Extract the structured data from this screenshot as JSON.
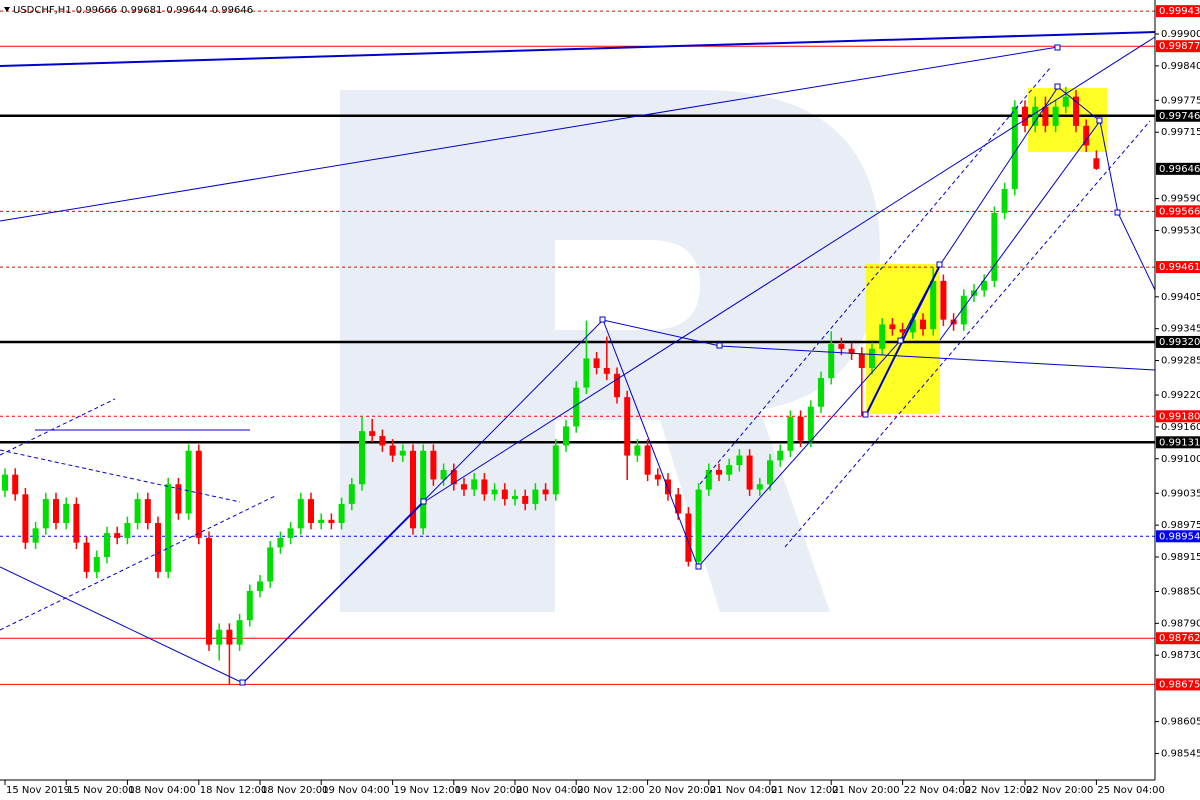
{
  "chart_data": {
    "type": "candlestick",
    "symbol": "USDCHF,H1",
    "up_color": "#00dd00",
    "down_color": "#ff0000",
    "ylim": [
      0.98495,
      0.99964
    ],
    "yticks": [
      {
        "value": 0.999,
        "label": "0.99900"
      },
      {
        "value": 0.9984,
        "label": "0.99840"
      },
      0.99775,
      0.99715,
      {
        "value": 0.9959,
        "label": "0.99590"
      },
      {
        "value": 0.9953,
        "label": "0.99530"
      },
      0.99405,
      0.99345,
      0.99285,
      {
        "value": 0.9922,
        "label": "0.99220"
      },
      {
        "value": 0.9916,
        "label": "0.99160"
      },
      {
        "value": 0.991,
        "label": "0.99100"
      },
      0.99035,
      0.98975,
      0.98915,
      {
        "value": 0.9885,
        "label": "0.98850"
      },
      {
        "value": 0.9879,
        "label": "0.98790"
      },
      {
        "value": 0.9873,
        "label": "0.98730"
      },
      0.98605,
      0.98545
    ],
    "xticks": [
      {
        "value": 0,
        "label": "15 Nov 2019"
      },
      {
        "value": 6,
        "label": "15 Nov 20:00"
      },
      {
        "value": 12,
        "label": "18 Nov 04:00"
      },
      {
        "value": 19,
        "label": "18 Nov 12:00"
      },
      {
        "value": 25,
        "label": "18 Nov 20:00"
      },
      {
        "value": 31,
        "label": "19 Nov 04:00"
      },
      {
        "value": 38,
        "label": "19 Nov 12:00"
      },
      {
        "value": 44,
        "label": "19 Nov 20:00"
      },
      {
        "value": 50,
        "label": "20 Nov 04:00"
      },
      {
        "value": 56,
        "label": "20 Nov 12:00"
      },
      {
        "value": 63,
        "label": "20 Nov 20:00"
      },
      {
        "value": 69,
        "label": "21 Nov 04:00"
      },
      {
        "value": 75,
        "label": "21 Nov 12:00"
      },
      {
        "value": 81,
        "label": "21 Nov 20:00"
      },
      {
        "value": 88,
        "label": "22 Nov 04:00"
      },
      {
        "value": 94,
        "label": "22 Nov 12:00"
      },
      {
        "value": 100,
        "label": "22 Nov 20:00"
      },
      {
        "value": 107,
        "label": "25 Nov 04:00"
      }
    ],
    "levels": [
      {
        "value": 0.99943,
        "label": "0.99943",
        "color": "#ff0000",
        "style": "dash"
      },
      {
        "value": 0.99877,
        "label": "0.99877",
        "color": "#ff0000",
        "style": "solid"
      },
      {
        "value": 0.99746,
        "label": "0.99746",
        "color": "#000000",
        "style": "thick"
      },
      {
        "value": 0.99566,
        "label": "0.99566",
        "color": "#ff0000",
        "style": "dash"
      },
      {
        "value": 0.99461,
        "label": "0.99461",
        "color": "#ff0000",
        "style": "dash"
      },
      {
        "value": 0.9932,
        "label": "0.99320",
        "color": "#000000",
        "style": "thick"
      },
      {
        "value": 0.9918,
        "label": "0.99180",
        "color": "#ff0000",
        "style": "dash"
      },
      {
        "value": 0.99131,
        "label": "0.99131",
        "color": "#000000",
        "style": "thick"
      },
      {
        "value": 0.98954,
        "label": "0.98954",
        "color": "#0000ff",
        "style": "dash"
      },
      {
        "value": 0.98762,
        "label": "0.98762",
        "color": "#ff0000",
        "style": "solid"
      },
      {
        "value": 0.98675,
        "label": "0.98675",
        "color": "#ff0000",
        "style": "solid"
      }
    ],
    "current_price": 0.99646,
    "ohlc": [
      [
        0.9904,
        0.99082,
        0.99028,
        0.9907
      ],
      [
        0.9907,
        0.99082,
        0.99021,
        0.99033
      ],
      [
        0.99033,
        0.99045,
        0.9893,
        0.98942
      ],
      [
        0.98942,
        0.98981,
        0.9893,
        0.98969
      ],
      [
        0.98969,
        0.99036,
        0.98957,
        0.99024
      ],
      [
        0.99024,
        0.99036,
        0.98967,
        0.98979
      ],
      [
        0.98979,
        0.99027,
        0.98967,
        0.99015
      ],
      [
        0.99015,
        0.99027,
        0.9893,
        0.98942
      ],
      [
        0.98942,
        0.98954,
        0.98875,
        0.98887
      ],
      [
        0.98887,
        0.98927,
        0.98875,
        0.98915
      ],
      [
        0.98915,
        0.98972,
        0.98903,
        0.9896
      ],
      [
        0.9896,
        0.98972,
        0.98939,
        0.98951
      ],
      [
        0.98951,
        0.98991,
        0.98939,
        0.98979
      ],
      [
        0.98979,
        0.99036,
        0.98967,
        0.99024
      ],
      [
        0.99024,
        0.99036,
        0.98967,
        0.98979
      ],
      [
        0.98979,
        0.98991,
        0.98875,
        0.98887
      ],
      [
        0.98887,
        0.99064,
        0.98875,
        0.99052
      ],
      [
        0.99052,
        0.99064,
        0.98985,
        0.98997
      ],
      [
        0.98997,
        0.99127,
        0.98985,
        0.99115
      ],
      [
        0.99115,
        0.99127,
        0.98939,
        0.98951
      ],
      [
        0.98951,
        0.98963,
        0.98738,
        0.9875
      ],
      [
        0.9875,
        0.9879,
        0.9872,
        0.98778
      ],
      [
        0.98778,
        0.9879,
        0.98675,
        0.9875
      ],
      [
        0.9875,
        0.98808,
        0.98738,
        0.98796
      ],
      [
        0.98796,
        0.98863,
        0.98784,
        0.98851
      ],
      [
        0.98851,
        0.98881,
        0.98839,
        0.98869
      ],
      [
        0.98869,
        0.98945,
        0.98857,
        0.98933
      ],
      [
        0.98933,
        0.98963,
        0.98921,
        0.98951
      ],
      [
        0.98951,
        0.98981,
        0.98939,
        0.98969
      ],
      [
        0.98969,
        0.99036,
        0.98957,
        0.99024
      ],
      [
        0.99024,
        0.99036,
        0.98967,
        0.98979
      ],
      [
        0.98979,
        0.98997,
        0.98967,
        0.98985
      ],
      [
        0.98985,
        0.98997,
        0.98967,
        0.98979
      ],
      [
        0.98979,
        0.99027,
        0.98967,
        0.99015
      ],
      [
        0.99015,
        0.99064,
        0.99003,
        0.99052
      ],
      [
        0.99052,
        0.9918,
        0.9904,
        0.99152
      ],
      [
        0.99152,
        0.99175,
        0.99131,
        0.99143
      ],
      [
        0.99143,
        0.99155,
        0.99113,
        0.99125
      ],
      [
        0.99125,
        0.99137,
        0.99094,
        0.99106
      ],
      [
        0.99106,
        0.99127,
        0.99094,
        0.99115
      ],
      [
        0.99115,
        0.99127,
        0.98957,
        0.98969
      ],
      [
        0.98969,
        0.99127,
        0.98957,
        0.99115
      ],
      [
        0.99115,
        0.99127,
        0.99049,
        0.99061
      ],
      [
        0.99061,
        0.99091,
        0.99049,
        0.99079
      ],
      [
        0.99079,
        0.99091,
        0.9904,
        0.99052
      ],
      [
        0.99052,
        0.99064,
        0.9903,
        0.99042
      ],
      [
        0.99042,
        0.99073,
        0.9903,
        0.99061
      ],
      [
        0.99061,
        0.99073,
        0.99021,
        0.99033
      ],
      [
        0.99033,
        0.99054,
        0.99021,
        0.99042
      ],
      [
        0.99042,
        0.99054,
        0.99012,
        0.99024
      ],
      [
        0.99024,
        0.99042,
        0.99012,
        0.9903
      ],
      [
        0.9903,
        0.99042,
        0.99003,
        0.99015
      ],
      [
        0.99015,
        0.99054,
        0.99003,
        0.99042
      ],
      [
        0.99042,
        0.99054,
        0.99021,
        0.99033
      ],
      [
        0.99033,
        0.99137,
        0.99021,
        0.99125
      ],
      [
        0.99125,
        0.99173,
        0.99113,
        0.99161
      ],
      [
        0.99161,
        0.99246,
        0.99149,
        0.99234
      ],
      [
        0.99234,
        0.9936,
        0.99222,
        0.99289
      ],
      [
        0.99289,
        0.99301,
        0.99259,
        0.99271
      ],
      [
        0.99271,
        0.9933,
        0.99248,
        0.9926
      ],
      [
        0.9926,
        0.99272,
        0.99204,
        0.99216
      ],
      [
        0.99216,
        0.99228,
        0.9906,
        0.99106
      ],
      [
        0.99106,
        0.99137,
        0.99094,
        0.99125
      ],
      [
        0.99125,
        0.99137,
        0.99058,
        0.9907
      ],
      [
        0.9907,
        0.99082,
        0.99049,
        0.99061
      ],
      [
        0.99061,
        0.99073,
        0.99021,
        0.99033
      ],
      [
        0.99033,
        0.99045,
        0.98985,
        0.98997
      ],
      [
        0.98997,
        0.99009,
        0.98897,
        0.98906
      ],
      [
        0.98906,
        0.99054,
        0.98894,
        0.99042
      ],
      [
        0.99042,
        0.99091,
        0.9903,
        0.99079
      ],
      [
        0.99079,
        0.99091,
        0.99058,
        0.9907
      ],
      [
        0.9907,
        0.991,
        0.99058,
        0.99088
      ],
      [
        0.99088,
        0.99118,
        0.99076,
        0.99106
      ],
      [
        0.99106,
        0.99118,
        0.9903,
        0.99042
      ],
      [
        0.99042,
        0.99064,
        0.9903,
        0.99052
      ],
      [
        0.99052,
        0.99109,
        0.9904,
        0.99097
      ],
      [
        0.99097,
        0.99127,
        0.99085,
        0.99115
      ],
      [
        0.99115,
        0.99191,
        0.99103,
        0.99179
      ],
      [
        0.99179,
        0.99191,
        0.99122,
        0.99134
      ],
      [
        0.99134,
        0.9921,
        0.99122,
        0.99198
      ],
      [
        0.99198,
        0.99264,
        0.99186,
        0.99252
      ],
      [
        0.99252,
        0.9934,
        0.9924,
        0.99316
      ],
      [
        0.99316,
        0.99328,
        0.99295,
        0.99307
      ],
      [
        0.99307,
        0.99319,
        0.99286,
        0.99298
      ],
      [
        0.99298,
        0.9931,
        0.9918,
        0.99271
      ],
      [
        0.99271,
        0.99319,
        0.99259,
        0.99307
      ],
      [
        0.99307,
        0.99365,
        0.99295,
        0.99353
      ],
      [
        0.99353,
        0.99365,
        0.99332,
        0.99344
      ],
      [
        0.99344,
        0.99356,
        0.99326,
        0.99338
      ],
      [
        0.99338,
        0.99374,
        0.99326,
        0.99362
      ],
      [
        0.99362,
        0.99374,
        0.99332,
        0.99344
      ],
      [
        0.99344,
        0.99461,
        0.99332,
        0.99435
      ],
      [
        0.99435,
        0.99447,
        0.9935,
        0.99362
      ],
      [
        0.99362,
        0.99374,
        0.99341,
        0.99353
      ],
      [
        0.99353,
        0.99419,
        0.99341,
        0.99407
      ],
      [
        0.99407,
        0.99429,
        0.99395,
        0.99417
      ],
      [
        0.99417,
        0.99447,
        0.99405,
        0.99435
      ],
      [
        0.99435,
        0.99575,
        0.99423,
        0.99563
      ],
      [
        0.99563,
        0.9962,
        0.99551,
        0.99608
      ],
      [
        0.99608,
        0.99775,
        0.99596,
        0.99763
      ],
      [
        0.99763,
        0.99775,
        0.99715,
        0.99727
      ],
      [
        0.99727,
        0.99782,
        0.99715,
        0.99763
      ],
      [
        0.99763,
        0.99782,
        0.99715,
        0.99727
      ],
      [
        0.99727,
        0.99775,
        0.99715,
        0.99763
      ],
      [
        0.99763,
        0.998,
        0.99751,
        0.99782
      ],
      [
        0.99782,
        0.99794,
        0.99715,
        0.99727
      ],
      [
        0.99727,
        0.99739,
        0.99678,
        0.9969
      ],
      [
        0.99666,
        0.99681,
        0.99644,
        0.99646
      ]
    ]
  }
}
